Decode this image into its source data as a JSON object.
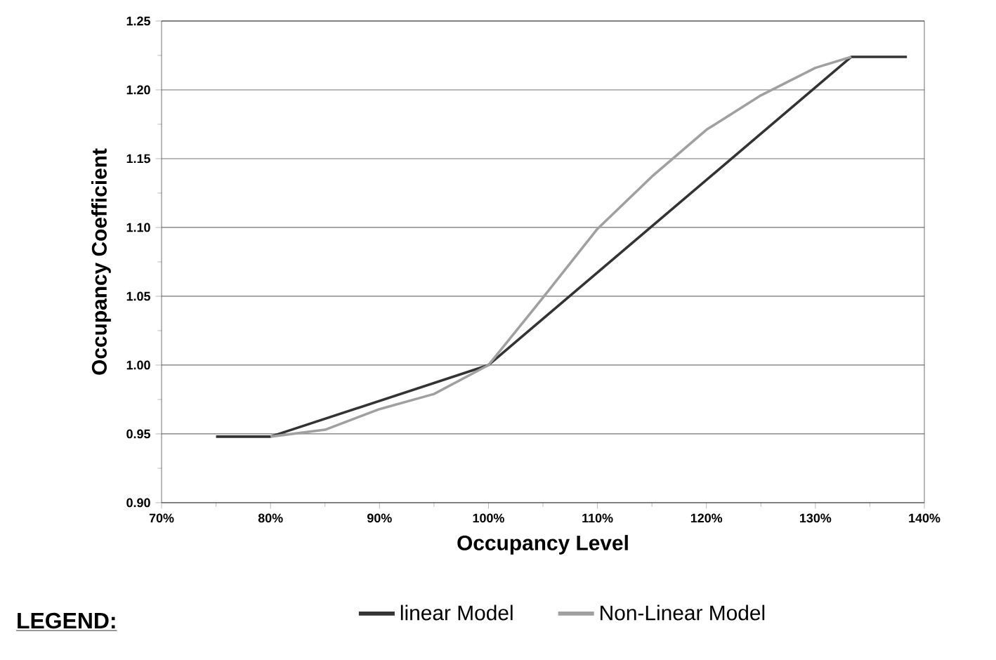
{
  "chart_data": {
    "type": "line",
    "xlabel": "Occupancy Level",
    "ylabel": "Occupancy Coefficient",
    "legend_title": "LEGEND:",
    "series": [
      {
        "name": "linear Model",
        "color": "#333333",
        "x": [
          75,
          80,
          100,
          133.3,
          138.4
        ],
        "values": [
          0.948,
          0.948,
          1.0,
          1.224,
          1.224
        ]
      },
      {
        "name": "Non-Linear Model",
        "color": "#a0a0a0",
        "x": [
          80,
          85,
          90,
          95,
          100,
          105,
          110,
          115,
          120,
          125,
          130,
          133.3
        ],
        "values": [
          0.948,
          0.953,
          0.968,
          0.979,
          1.0,
          1.049,
          1.099,
          1.137,
          1.171,
          1.196,
          1.216,
          1.224
        ]
      }
    ],
    "xlim": [
      70,
      140
    ],
    "xticks": [
      {
        "value": 70,
        "label": "70%"
      },
      {
        "value": 80,
        "label": "80%"
      },
      {
        "value": 90,
        "label": "90%"
      },
      {
        "value": 100,
        "label": "100%"
      },
      {
        "value": 110,
        "label": "110%"
      },
      {
        "value": 120,
        "label": "120%"
      },
      {
        "value": 130,
        "label": "130%"
      },
      {
        "value": 140,
        "label": "140%"
      }
    ],
    "ylim": [
      0.9,
      1.25
    ],
    "yticks": [
      {
        "value": 0.9,
        "label": "0.90"
      },
      {
        "value": 0.95,
        "label": "0.95"
      },
      {
        "value": 1.0,
        "label": "1.00"
      },
      {
        "value": 1.05,
        "label": "1.05"
      },
      {
        "value": 1.1,
        "label": "1.10"
      },
      {
        "value": 1.15,
        "label": "1.15"
      },
      {
        "value": 1.2,
        "label": "1.20"
      },
      {
        "value": 1.25,
        "label": "1.25"
      }
    ],
    "grid": "y",
    "legend": "bottom",
    "marker": "none",
    "line_style": "solid"
  }
}
